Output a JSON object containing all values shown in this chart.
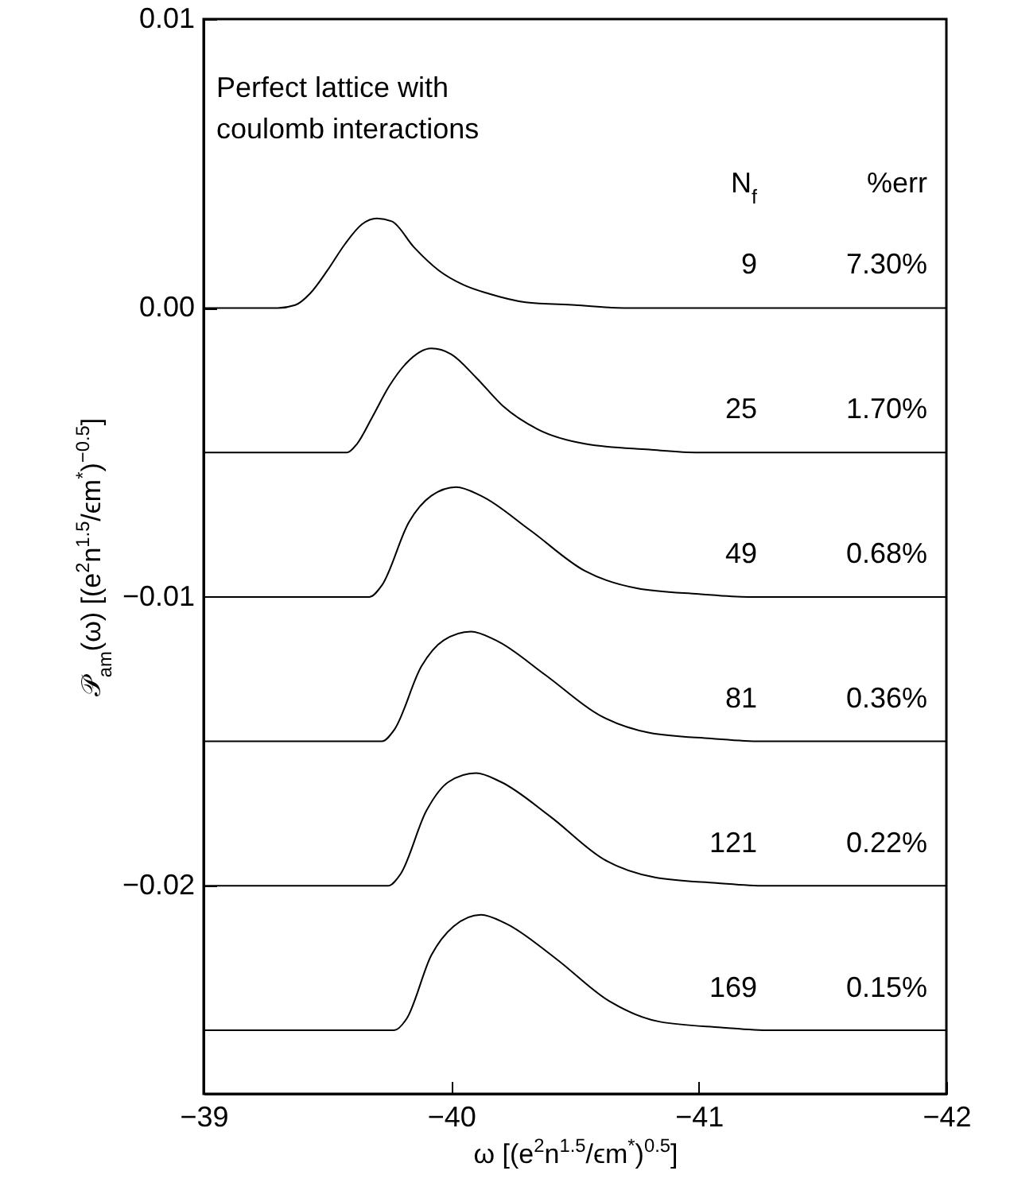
{
  "chart_data": {
    "type": "line",
    "xlabel": "ω  [(e$^{2}$n$^{1.5}$/ϵm$^{*}$)$^{0.5}$]",
    "ylabel": "𝒫$_{am}$(ω)  [(e$^{2}$n$^{1.5}$/ϵm$^{*}$)$^{−0.5}$]",
    "xlim": [
      -39,
      -42
    ],
    "xticks": [
      {
        "value": -39,
        "label": "−39"
      },
      {
        "value": -40,
        "label": "−40"
      },
      {
        "value": -41,
        "label": "−41"
      },
      {
        "value": -42,
        "label": "−42"
      }
    ],
    "ylim": [
      -0.0272,
      0.01
    ],
    "yticks": [
      {
        "value": 0.01,
        "label": "0.01"
      },
      {
        "value": 0,
        "label": "0.00"
      },
      {
        "value": -0.01,
        "label": "−0.01"
      },
      {
        "value": -0.02,
        "label": "−0.02"
      }
    ],
    "grid": false,
    "marker": "none",
    "line_style": "solid",
    "annotations": [
      "Perfect lattice with\ncoulomb interactions",
      "N$_{f}$",
      "%err",
      "9",
      "7.30%",
      "25",
      "1.70%",
      "49",
      "0.68%",
      "81",
      "0.36%",
      "121",
      "0.22%",
      "169",
      "0.15%"
    ],
    "series": [
      {
        "color": "#000000",
        "x": [
          -39.0,
          -39.3,
          -39.37,
          -39.43,
          -39.5,
          -39.57,
          -39.64,
          -39.7,
          -39.76,
          -39.85,
          -39.95,
          -40.05,
          -40.15,
          -40.3,
          -40.5,
          -40.7,
          -42.0
        ],
        "values": [
          0,
          0,
          0.0001,
          0.0005,
          0.0013,
          0.0022,
          0.0029,
          0.0031,
          0.003,
          0.0021,
          0.0013,
          0.0008,
          0.0005,
          0.0002,
          0.0001,
          0,
          0
        ]
      },
      {
        "color": "#000000",
        "x": [
          -39.0,
          -39.58,
          -39.62,
          -39.68,
          -39.75,
          -39.82,
          -39.92,
          -40.0,
          -40.1,
          -40.21,
          -40.35,
          -40.54,
          -40.8,
          -41.0,
          -42.0
        ],
        "values": [
          -0.005,
          -0.005,
          -0.0047,
          -0.0038,
          -0.0027,
          -0.0019,
          -0.0014,
          -0.0016,
          -0.0024,
          -0.0034,
          -0.0042,
          -0.0047,
          -0.0049,
          -0.005,
          -0.005
        ]
      },
      {
        "color": "#000000",
        "x": [
          -39.0,
          -39.67,
          -39.72,
          -39.83,
          -39.92,
          -40.02,
          -40.12,
          -40.32,
          -40.54,
          -40.75,
          -41.0,
          -41.2,
          -42.0
        ],
        "values": [
          -0.01,
          -0.01,
          -0.0096,
          -0.0074,
          -0.0065,
          -0.0062,
          -0.0065,
          -0.0077,
          -0.0091,
          -0.0097,
          -0.0099,
          -0.01,
          -0.01
        ]
      },
      {
        "color": "#000000",
        "x": [
          -39.0,
          -39.72,
          -39.77,
          -39.88,
          -39.97,
          -40.08,
          -40.18,
          -40.38,
          -40.6,
          -40.8,
          -41.05,
          -41.25,
          -42.0
        ],
        "values": [
          -0.015,
          -0.015,
          -0.0146,
          -0.0124,
          -0.0115,
          -0.0112,
          -0.0115,
          -0.0127,
          -0.0141,
          -0.0147,
          -0.0149,
          -0.015,
          -0.015
        ]
      },
      {
        "color": "#000000",
        "x": [
          -39.0,
          -39.745,
          -39.795,
          -39.9,
          -39.99,
          -40.1,
          -40.2,
          -40.4,
          -40.62,
          -40.82,
          -41.07,
          -41.27,
          -42.0
        ],
        "values": [
          -0.02,
          -0.02,
          -0.0196,
          -0.0174,
          -0.0164,
          -0.0161,
          -0.0164,
          -0.0176,
          -0.0191,
          -0.0197,
          -0.0199,
          -0.02,
          -0.02
        ]
      },
      {
        "color": "#000000",
        "x": [
          -39.0,
          -39.77,
          -39.82,
          -39.92,
          -40.01,
          -40.12,
          -40.22,
          -40.42,
          -40.64,
          -40.84,
          -41.09,
          -41.29,
          -42.0
        ],
        "values": [
          -0.025,
          -0.025,
          -0.0246,
          -0.0224,
          -0.0214,
          -0.021,
          -0.0213,
          -0.0225,
          -0.024,
          -0.0247,
          -0.0249,
          -0.025,
          -0.025
        ]
      }
    ]
  }
}
